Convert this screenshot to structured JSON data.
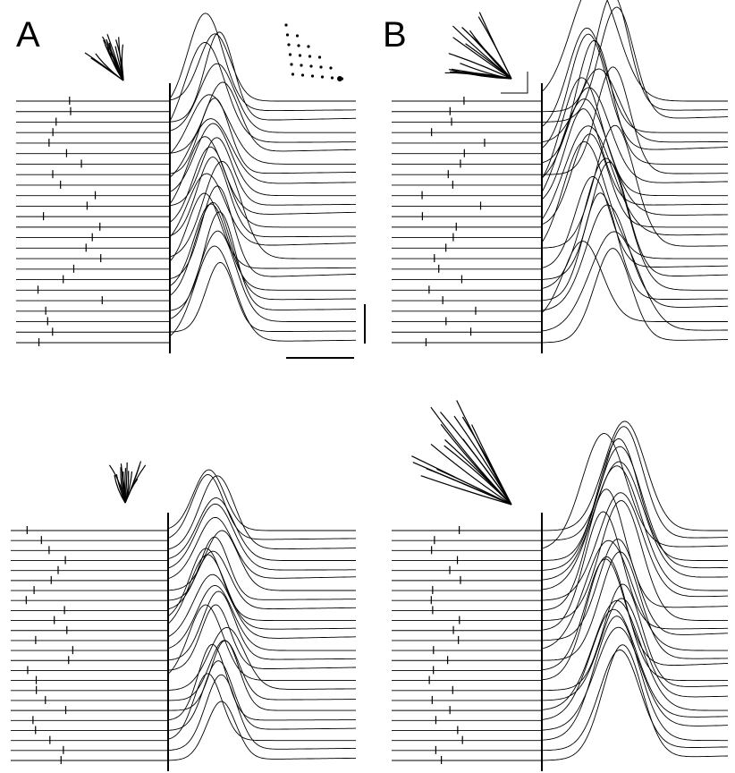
{
  "figure": {
    "panel_labels": [
      "A",
      "B"
    ],
    "stroke_color": "#000000",
    "background": "#ffffff"
  },
  "panels": [
    {
      "id": "A-top",
      "label": "A",
      "trials": 24,
      "icon": "fan-of-reach-trajectories-icon",
      "inset": "target-dot-grid-icon",
      "scale_bars": true
    },
    {
      "id": "B-top",
      "label": "B",
      "trials": 24,
      "icon": "fan-of-reach-trajectories-icon",
      "inset": "corner-scale-icon",
      "scale_bars": false
    },
    {
      "id": "A-bottom",
      "label": "",
      "trials": 24,
      "icon": "fan-of-reach-trajectories-icon",
      "inset": "",
      "scale_bars": false
    },
    {
      "id": "B-bottom",
      "label": "",
      "trials": 24,
      "icon": "fan-of-reach-trajectories-icon",
      "inset": "",
      "scale_bars": false
    }
  ]
}
